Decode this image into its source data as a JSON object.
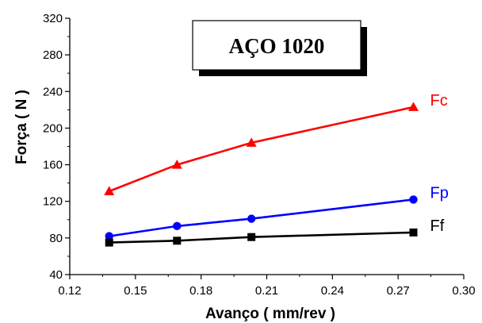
{
  "chart_data": {
    "type": "line",
    "title": "AÇO 1020",
    "xlabel": "Avanço ( mm/rev )",
    "ylabel": "Força ( N )",
    "xlim": [
      0.12,
      0.3
    ],
    "ylim": [
      40,
      320
    ],
    "xticks": [
      "0.12",
      "0.15",
      "0.18",
      "0.21",
      "0.24",
      "0.27",
      "0.30"
    ],
    "yticks": [
      "40",
      "80",
      "120",
      "160",
      "200",
      "240",
      "280",
      "320"
    ],
    "x": [
      0.138,
      0.169,
      0.203,
      0.277
    ],
    "grid": false,
    "series": [
      {
        "name": "Fc",
        "values": [
          131,
          160,
          184,
          223
        ],
        "color": "#ff0000",
        "marker": "triangle"
      },
      {
        "name": "Fp",
        "values": [
          82,
          93,
          101,
          122
        ],
        "color": "#0000ff",
        "marker": "circle"
      },
      {
        "name": "Ff",
        "values": [
          75,
          77,
          81,
          86
        ],
        "color": "#000000",
        "marker": "square"
      }
    ]
  }
}
